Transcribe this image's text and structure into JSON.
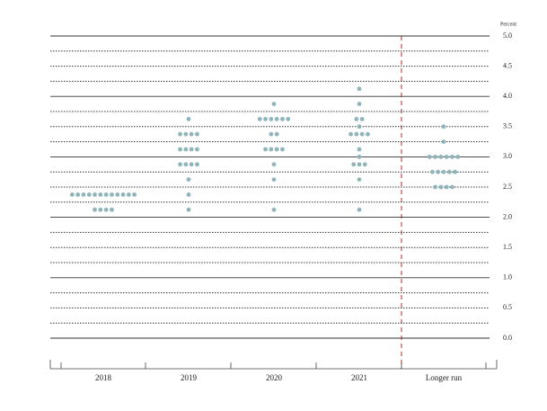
{
  "chart_data": {
    "type": "dotplot",
    "axis_label": "Percent",
    "categories": [
      "2018",
      "2019",
      "2020",
      "2021",
      "Longer run"
    ],
    "values": [
      [
        2.375,
        2.375,
        2.375,
        2.375,
        2.375,
        2.375,
        2.375,
        2.375,
        2.375,
        2.375,
        2.375,
        2.375,
        2.125,
        2.125,
        2.125,
        2.125
      ],
      [
        3.625,
        3.375,
        3.375,
        3.375,
        3.375,
        3.125,
        3.125,
        3.125,
        3.125,
        2.875,
        2.875,
        2.875,
        2.875,
        2.625,
        2.375,
        2.125
      ],
      [
        3.875,
        3.625,
        3.625,
        3.625,
        3.625,
        3.625,
        3.625,
        3.375,
        3.375,
        3.125,
        3.125,
        3.125,
        3.125,
        2.875,
        2.625,
        2.125
      ],
      [
        4.125,
        3.875,
        3.625,
        3.625,
        3.5,
        3.375,
        3.375,
        3.375,
        3.375,
        3.125,
        3,
        2.875,
        2.875,
        2.875,
        2.625,
        2.125
      ],
      [
        3.5,
        3.25,
        3,
        3,
        3,
        3,
        3,
        3,
        2.75,
        2.75,
        2.75,
        2.75,
        2.75,
        2.5,
        2.5,
        2.5,
        2.5
      ]
    ],
    "color": "#8fb4b9",
    "ylim": [
      0,
      5
    ],
    "yticks": [
      {
        "value": 0,
        "label": "0.0"
      },
      {
        "value": 0.5,
        "label": "0.5"
      },
      {
        "value": 1,
        "label": "1.0"
      },
      {
        "value": 1.5,
        "label": "1.5"
      },
      {
        "value": 2,
        "label": "2.0"
      },
      {
        "value": 2.5,
        "label": "2.5"
      },
      {
        "value": 3,
        "label": "3.0"
      },
      {
        "value": 3.5,
        "label": "3.5"
      },
      {
        "value": 4,
        "label": "4.0"
      },
      {
        "value": 4.5,
        "label": "4.5"
      },
      {
        "value": 5,
        "label": "5.0"
      }
    ],
    "grid": true
  }
}
